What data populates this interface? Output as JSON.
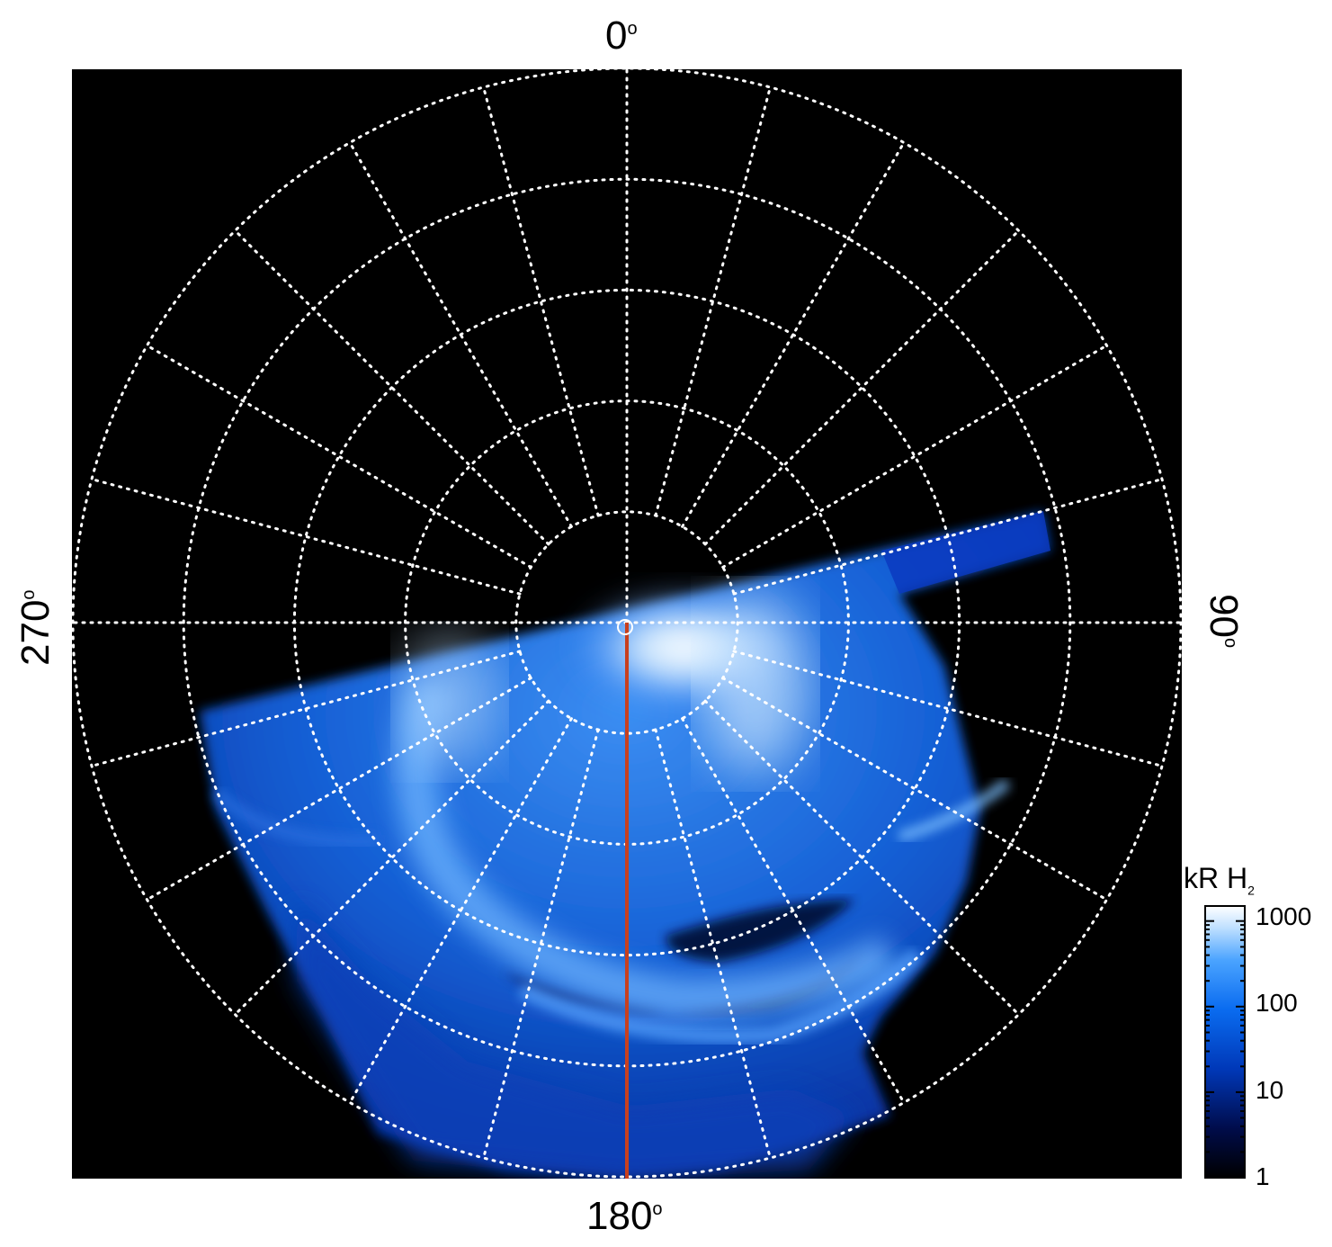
{
  "figure": {
    "angle_labels": {
      "top": "0",
      "bottom": "180",
      "left": "270",
      "right": "90",
      "degree_symbol": "o"
    },
    "colorbar": {
      "title_main": "kR H",
      "title_sub": "2",
      "ticks": [
        "1000",
        "100",
        "10",
        "1"
      ],
      "scale": "log",
      "range": [
        1,
        1500
      ],
      "colors": [
        "#000000",
        "#000c4a",
        "#0038b8",
        "#0a6cf0",
        "#4aa3ff",
        "#bfe0ff",
        "#ffffff"
      ]
    },
    "grid": {
      "color": "#ffffff",
      "style": "dotted",
      "meridian_step_deg": 15,
      "latitude_rings": 5
    },
    "reference_line": {
      "color": "#c8401e",
      "direction": "180"
    },
    "colors": {
      "background": "#000000",
      "aurora_dim": "#0033aa",
      "aurora_mid": "#1a7cff",
      "aurora_bright": "#dff0ff"
    }
  }
}
